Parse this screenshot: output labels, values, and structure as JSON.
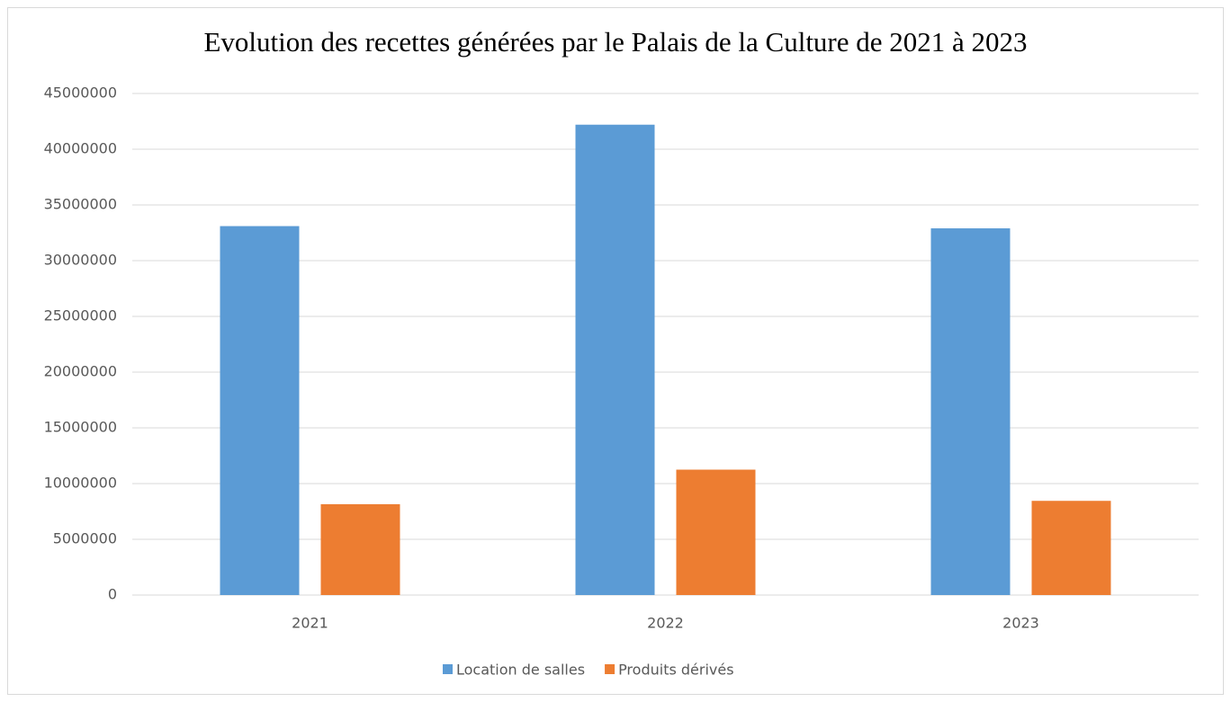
{
  "chart_data": {
    "type": "bar",
    "title": "Evolution des recettes générées par le Palais de la Culture de 2021 à 2023",
    "categories": [
      "2021",
      "2022",
      "2023"
    ],
    "series": [
      {
        "name": "Location de salles",
        "color": "#5b9bd5",
        "values": [
          33100000,
          42200000,
          32900000
        ]
      },
      {
        "name": "Produits dérivés",
        "color": "#ed7d31",
        "values": [
          8150000,
          11250000,
          8450000
        ]
      }
    ],
    "ylim": [
      0,
      45000000
    ],
    "yticks": [
      0,
      5000000,
      10000000,
      15000000,
      20000000,
      25000000,
      30000000,
      35000000,
      40000000,
      45000000
    ],
    "grid": true,
    "legend": "bottom"
  }
}
